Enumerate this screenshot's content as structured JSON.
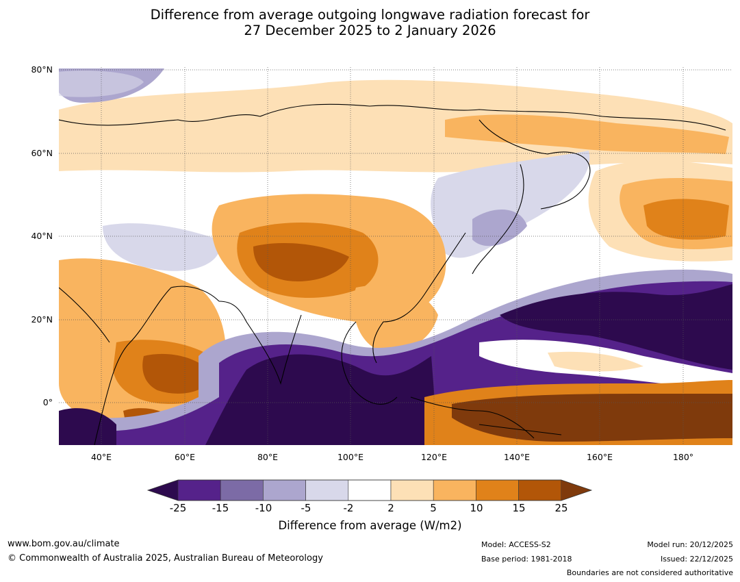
{
  "title": {
    "line1": "Difference from average outgoing longwave radiation forecast for",
    "line2": "27 December 2025 to 2 January 2026"
  },
  "map": {
    "lat_labels": [
      "80°N",
      "60°N",
      "40°N",
      "20°N",
      "0°"
    ],
    "lon_labels": [
      "40°E",
      "60°E",
      "80°E",
      "100°E",
      "120°E",
      "140°E",
      "160°E",
      "180°"
    ],
    "lon_range_deg": [
      30,
      192
    ],
    "lat_range_deg": [
      -10,
      80
    ]
  },
  "colorbar": {
    "label": "Difference from average (W/m2)",
    "ticks": [
      "-25",
      "-15",
      "-10",
      "-5",
      "-2",
      "2",
      "5",
      "10",
      "15",
      "25"
    ],
    "colors": [
      "#2d0a4e",
      "#55228a",
      "#7c6ba6",
      "#aca6ce",
      "#d8d8ea",
      "#ffffff",
      "#fde0b6",
      "#f9b45f",
      "#e0821a",
      "#b25608",
      "#7f3a0c"
    ]
  },
  "footer": {
    "website": "www.bom.gov.au/climate",
    "copyright": "© Commonwealth of Australia 2025, Australian Bureau of Meteorology",
    "model": "Model: ACCESS-S2",
    "base_period": "Base period: 1981-2018",
    "model_run": "Model run: 20/12/2025",
    "issued": "Issued: 22/12/2025",
    "disclaimer": "Boundaries are not considered authoritative"
  }
}
